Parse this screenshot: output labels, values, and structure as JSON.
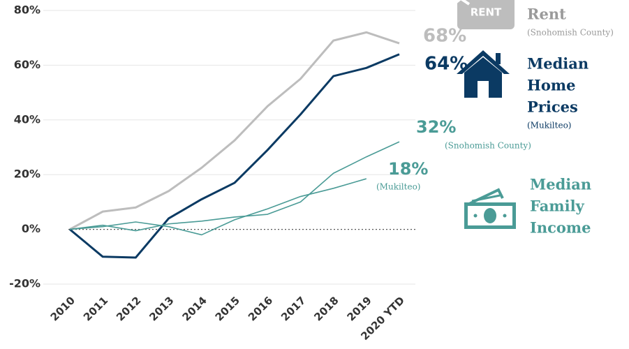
{
  "chart_data": {
    "type": "line",
    "categories": [
      "2010",
      "2011",
      "2012",
      "2013",
      "2014",
      "2015",
      "2016",
      "2017",
      "2018",
      "2019",
      "2020 YTD"
    ],
    "series": [
      {
        "color": "#bdbdbd",
        "values": [
          0,
          6.5,
          8,
          14,
          22.5,
          32.5,
          45,
          55,
          69,
          72,
          68
        ],
        "value_labels": [
          null,
          null,
          null,
          null,
          null,
          null,
          null,
          null,
          null,
          null,
          "68%"
        ]
      },
      {
        "color": "#0b3a63",
        "values": [
          0,
          -10,
          -10.3,
          4,
          11,
          17,
          29,
          42,
          56,
          59,
          64
        ],
        "value_labels": [
          null,
          null,
          null,
          null,
          null,
          null,
          null,
          null,
          null,
          null,
          "64%"
        ]
      },
      {
        "color": "#4a9b96",
        "values": [
          0,
          1.5,
          -0.5,
          2,
          3,
          4.5,
          5.5,
          10,
          20.5,
          26.5,
          32
        ],
        "value_labels": [
          null,
          null,
          null,
          null,
          null,
          null,
          null,
          null,
          null,
          null,
          "32%"
        ]
      },
      {
        "color": "#4a9b96",
        "values": [
          0,
          1,
          2.7,
          1,
          -2,
          3.5,
          7.5,
          12,
          15,
          18.5,
          null
        ],
        "value_labels": [
          null,
          null,
          null,
          null,
          null,
          null,
          null,
          null,
          null,
          "18%",
          null
        ]
      }
    ],
    "annotations": [
      "(Snohomish County)",
      "(Mukilteo)"
    ],
    "legend": [
      {
        "lines": [
          "Rent"
        ],
        "note": "(Snohomish County)",
        "icon": "RENT",
        "color": "#9a9a9a"
      },
      {
        "lines": [
          "Median",
          "Home",
          "Prices"
        ],
        "note": "(Mukilteo)",
        "color": "#0b3a63"
      },
      {
        "lines": [
          "Median",
          "Family",
          "Income"
        ],
        "color": "#4a9b96"
      }
    ],
    "ylim": [
      -20,
      80
    ],
    "yticks": [
      {
        "value": -20,
        "label": "-20%"
      },
      {
        "value": 0,
        "label": "0%"
      },
      {
        "value": 20,
        "label": "20%"
      },
      {
        "value": 40,
        "label": "40%"
      },
      {
        "value": 60,
        "label": "60%"
      },
      {
        "value": 80,
        "label": "80%"
      }
    ],
    "grid": true
  }
}
